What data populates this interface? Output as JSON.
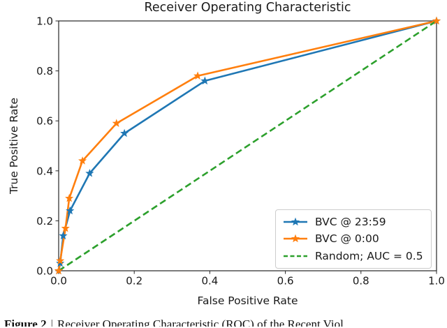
{
  "figure": {
    "caption_label": "Figure 2",
    "caption_separator": "|",
    "caption_text": "Receiver Operating Characteristic (ROC) of the Recent Viol"
  },
  "colors": {
    "blue": "#1f77b4",
    "orange": "#ff7f0e",
    "green": "#2ca02c",
    "axis": "#262626",
    "text": "#1a1a1a",
    "legend_border": "#cccccc"
  },
  "chart_data": {
    "type": "line",
    "title": "Receiver Operating Characteristic",
    "xlabel": "False Positive Rate",
    "ylabel": "True Positive Rate",
    "xlim": [
      0.0,
      1.0
    ],
    "ylim": [
      0.0,
      1.0
    ],
    "xticks": [
      0.0,
      0.2,
      0.4,
      0.6,
      0.8,
      1.0
    ],
    "yticks": [
      0.0,
      0.2,
      0.4,
      0.6,
      0.8,
      1.0
    ],
    "grid": false,
    "legend_position": "lower right",
    "series": [
      {
        "name": "BVC @ 23:59",
        "color": "#1f77b4",
        "style": "solid",
        "marker": "star",
        "points": [
          [
            0.0,
            0.0
          ],
          [
            0.004,
            0.03
          ],
          [
            0.012,
            0.14
          ],
          [
            0.03,
            0.24
          ],
          [
            0.082,
            0.39
          ],
          [
            0.174,
            0.55
          ],
          [
            0.387,
            0.76
          ],
          [
            1.0,
            1.0
          ]
        ]
      },
      {
        "name": "BVC @ 0:00",
        "color": "#ff7f0e",
        "style": "solid",
        "marker": "star",
        "points": [
          [
            0.0,
            0.0
          ],
          [
            0.004,
            0.04
          ],
          [
            0.018,
            0.17
          ],
          [
            0.028,
            0.29
          ],
          [
            0.063,
            0.44
          ],
          [
            0.153,
            0.59
          ],
          [
            0.368,
            0.78
          ],
          [
            1.0,
            1.0
          ]
        ]
      },
      {
        "name": "Random; AUC = 0.5",
        "color": "#2ca02c",
        "style": "dashed",
        "marker": "none",
        "points": [
          [
            0.0,
            0.0
          ],
          [
            1.0,
            1.0
          ]
        ]
      }
    ]
  }
}
